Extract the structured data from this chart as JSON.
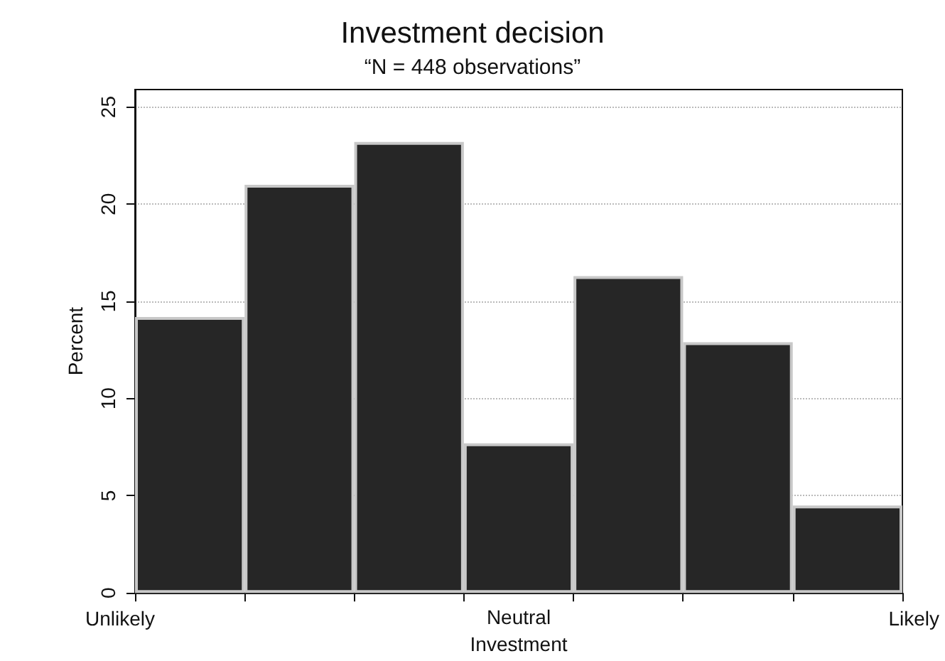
{
  "chart_data": {
    "type": "bar",
    "title": "Investment decision",
    "subtitle": "“N = 448 observations”",
    "xlabel": "Investment",
    "ylabel": "Percent",
    "categories": [
      null,
      null,
      null,
      "Neutral",
      null,
      null,
      null
    ],
    "values": [
      14.2,
      21.0,
      23.2,
      7.7,
      16.3,
      12.9,
      4.5
    ],
    "color": "#262626",
    "annotations": [
      "Unlikely",
      "Likely"
    ],
    "ylim": [
      0,
      25.9
    ],
    "yticks": [
      0,
      5,
      10,
      15,
      20,
      25
    ],
    "grid": "y"
  }
}
